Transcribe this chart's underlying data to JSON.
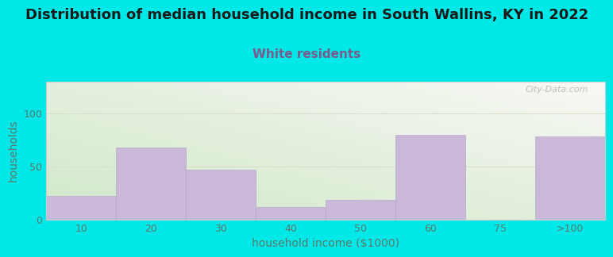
{
  "title": "Distribution of median household income in South Wallins, KY in 2022",
  "subtitle": "White residents",
  "xlabel": "household income ($1000)",
  "ylabel": "households",
  "categories": [
    "10",
    "20",
    "30",
    "40",
    "50",
    "60",
    "75",
    ">100"
  ],
  "values": [
    22,
    68,
    47,
    12,
    18,
    80,
    0,
    78
  ],
  "bar_color": "#c9b8d8",
  "bar_edge_color": "#b8a8cc",
  "background_color": "#00e8e8",
  "plot_bg_top_right": "#f8f8f5",
  "plot_bg_bottom_left": "#d0e8c8",
  "title_color": "#1a1a1a",
  "subtitle_color": "#7a5a8a",
  "axis_label_color": "#5a7a6a",
  "tick_color": "#5a7a6a",
  "grid_color": "#ddddcc",
  "ylim": [
    0,
    130
  ],
  "yticks": [
    0,
    50,
    100
  ],
  "title_fontsize": 13,
  "subtitle_fontsize": 11,
  "label_fontsize": 10,
  "tick_fontsize": 9,
  "watermark": "City-Data.com"
}
